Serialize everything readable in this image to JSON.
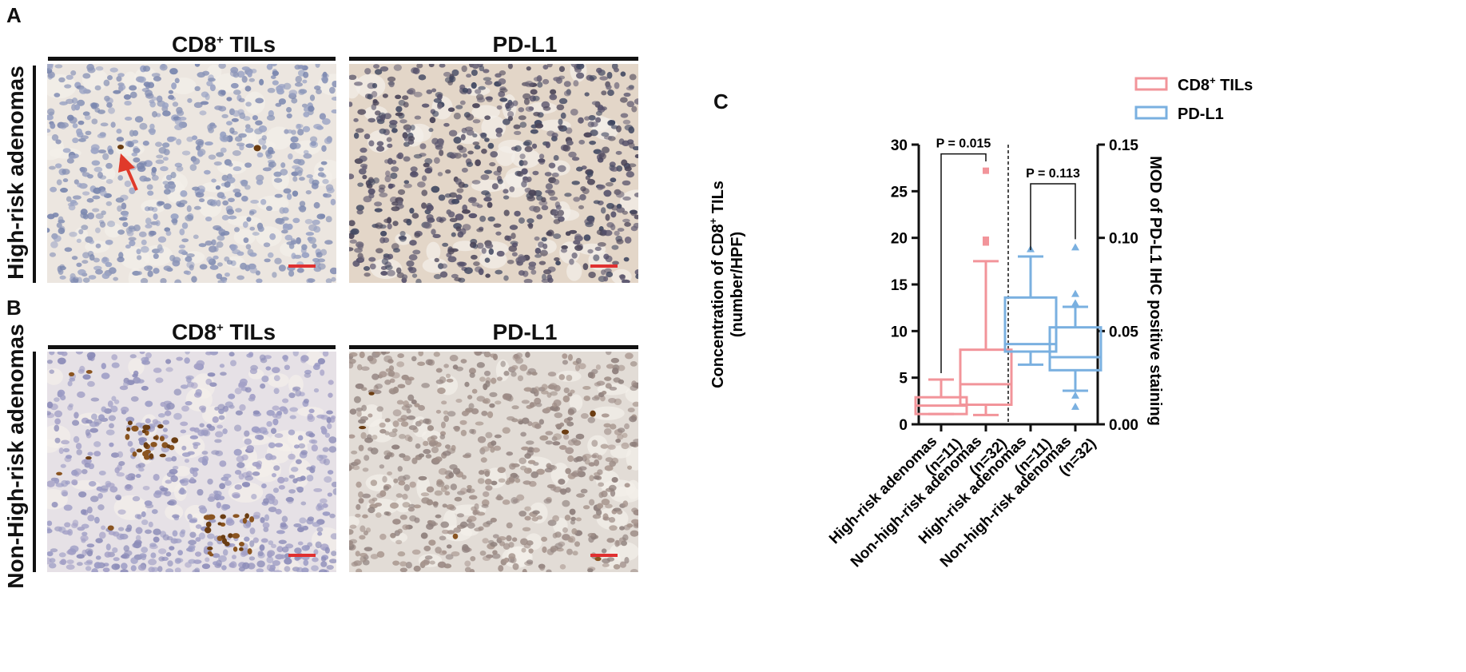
{
  "panels": {
    "a_letter": "A",
    "b_letter": "B",
    "c_letter": "C"
  },
  "column_titles": {
    "cd8_main": "CD8",
    "cd8_sup": "+",
    "cd8_tail": " TILs",
    "pdl1": "PD-L1"
  },
  "row_labels": {
    "high": "High-risk adenomas",
    "nonhigh": "Non-High-risk adenomas"
  },
  "colors": {
    "cd8": "#f2949a",
    "pdl1": "#7ab0e0",
    "scale_bar": "#e03030",
    "arrow": "#e03a2a"
  },
  "chart_data": {
    "type": "box",
    "legend": {
      "position": "top-right",
      "entries": [
        {
          "main": "CD8",
          "sup": "+",
          "tail": " TILs"
        },
        {
          "main": "PD-L1",
          "sup": "",
          "tail": ""
        }
      ]
    },
    "ylabel_left": {
      "main": "Concentration of CD8",
      "sup": "+",
      "tail": " TILs",
      "line2": "(number/HPF)"
    },
    "ylabel_right": "MOD of PD-L1 IHC positive staining",
    "ylim_left": [
      0,
      30
    ],
    "yticks_left": [
      "0",
      "5",
      "10",
      "15",
      "20",
      "25",
      "30"
    ],
    "ylim_right": [
      0,
      0.15
    ],
    "yticks_right": [
      "0.00",
      "0.05",
      "0.10",
      "0.15"
    ],
    "categories": [
      {
        "line1": "High-risk adenomas",
        "line2": "(n=11)"
      },
      {
        "line1": "Non-high-risk adenomas",
        "line2": "(n=32)"
      },
      {
        "line1": "High-risk adenomas",
        "line2": "(n=11)"
      },
      {
        "line1": "Non-high-risk adenomas",
        "line2": "(n=32)"
      }
    ],
    "series": [
      {
        "name": "CD8+ TILs",
        "axis": "left",
        "boxes": [
          {
            "whisker_low": 1.1,
            "q1": 1.1,
            "median": 2.0,
            "q3": 2.9,
            "whisker_high": 4.8,
            "outliers": []
          },
          {
            "whisker_low": 1.0,
            "q1": 2.1,
            "median": 4.3,
            "q3": 8.0,
            "whisker_high": 17.5,
            "outliers": [
              19.5,
              19.8,
              27.2
            ]
          }
        ]
      },
      {
        "name": "PD-L1",
        "axis": "right",
        "boxes": [
          {
            "whisker_low": 0.032,
            "q1": 0.039,
            "median": 0.043,
            "q3": 0.068,
            "whisker_high": 0.09,
            "outliers": [
              0.094
            ]
          },
          {
            "whisker_low": 0.018,
            "q1": 0.029,
            "median": 0.036,
            "q3": 0.052,
            "whisker_high": 0.063,
            "outliers": [
              0.0095,
              0.0155,
              0.065,
              0.07,
              0.095
            ]
          }
        ]
      }
    ],
    "annotations": [
      {
        "text": "P = 0.015",
        "from": 0,
        "to": 1,
        "axis": "left",
        "y": 29.0
      },
      {
        "text": "P = 0.113",
        "from": 2,
        "to": 3,
        "axis": "left",
        "y": 25.8
      }
    ]
  }
}
